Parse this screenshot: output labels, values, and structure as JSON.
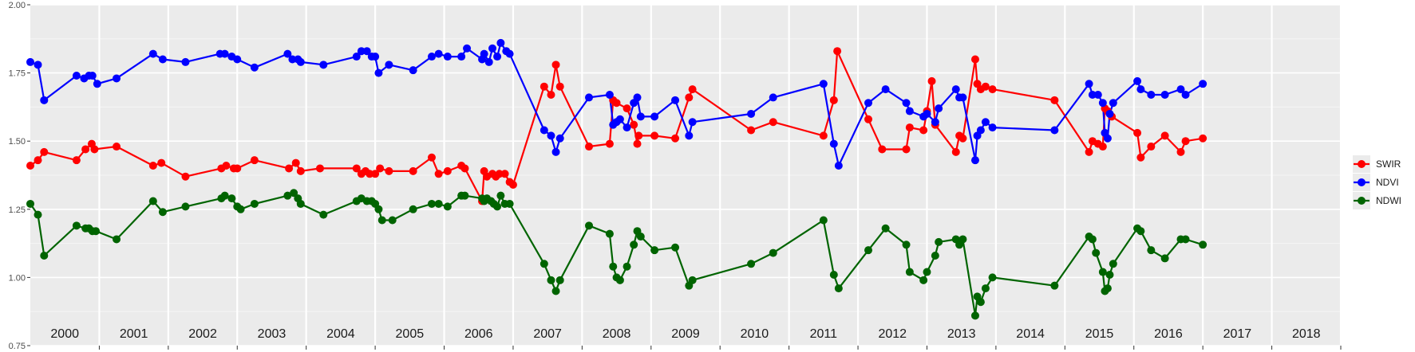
{
  "chart_data": {
    "type": "line",
    "title": "",
    "xlabel": "",
    "ylabel": "",
    "ylim": [
      0.75,
      2.0
    ],
    "xlim": [
      2000.0,
      2019.0
    ],
    "y_ticks": [
      0.75,
      1.0,
      1.25,
      1.5,
      1.75,
      2.0
    ],
    "y_tick_labels": [
      "0.75",
      "1.00",
      "1.25",
      "1.50",
      "1.75",
      "2.00"
    ],
    "year_labels": [
      "2000",
      "2001",
      "2002",
      "2003",
      "2004",
      "2005",
      "2006",
      "2007",
      "2008",
      "2009",
      "2010",
      "2011",
      "2012",
      "2013",
      "2014",
      "2015",
      "2016",
      "2017",
      "2018"
    ],
    "grid": true,
    "legend_position": "right",
    "series": [
      {
        "name": "SWIR",
        "color": "#ff0000",
        "points": [
          [
            2000.0,
            1.41
          ],
          [
            2000.11,
            1.43
          ],
          [
            2000.2,
            1.46
          ],
          [
            2000.67,
            1.43
          ],
          [
            2000.8,
            1.47
          ],
          [
            2000.89,
            1.49
          ],
          [
            2000.93,
            1.47
          ],
          [
            2001.25,
            1.48
          ],
          [
            2001.78,
            1.41
          ],
          [
            2001.9,
            1.42
          ],
          [
            2002.25,
            1.37
          ],
          [
            2002.77,
            1.4
          ],
          [
            2002.84,
            1.41
          ],
          [
            2002.95,
            1.4
          ],
          [
            2003.0,
            1.4
          ],
          [
            2003.25,
            1.43
          ],
          [
            2003.75,
            1.4
          ],
          [
            2003.85,
            1.42
          ],
          [
            2003.92,
            1.39
          ],
          [
            2004.2,
            1.4
          ],
          [
            2004.73,
            1.4
          ],
          [
            2004.8,
            1.38
          ],
          [
            2004.86,
            1.39
          ],
          [
            2004.92,
            1.38
          ],
          [
            2005.0,
            1.38
          ],
          [
            2005.07,
            1.4
          ],
          [
            2005.2,
            1.39
          ],
          [
            2005.55,
            1.39
          ],
          [
            2005.82,
            1.44
          ],
          [
            2005.92,
            1.38
          ],
          [
            2006.05,
            1.39
          ],
          [
            2006.25,
            1.41
          ],
          [
            2006.3,
            1.4
          ],
          [
            2006.55,
            1.28
          ],
          [
            2006.58,
            1.39
          ],
          [
            2006.62,
            1.37
          ],
          [
            2006.7,
            1.38
          ],
          [
            2006.75,
            1.37
          ],
          [
            2006.8,
            1.38
          ],
          [
            2006.88,
            1.38
          ],
          [
            2006.95,
            1.35
          ],
          [
            2007.0,
            1.34
          ],
          [
            2007.45,
            1.7
          ],
          [
            2007.55,
            1.67
          ],
          [
            2007.62,
            1.78
          ],
          [
            2007.68,
            1.7
          ],
          [
            2008.1,
            1.48
          ],
          [
            2008.4,
            1.49
          ],
          [
            2008.45,
            1.65
          ],
          [
            2008.5,
            1.64
          ],
          [
            2008.65,
            1.62
          ],
          [
            2008.75,
            1.56
          ],
          [
            2008.8,
            1.49
          ],
          [
            2008.82,
            1.52
          ],
          [
            2009.05,
            1.52
          ],
          [
            2009.35,
            1.51
          ],
          [
            2009.55,
            1.66
          ],
          [
            2009.6,
            1.69
          ],
          [
            2010.45,
            1.54
          ],
          [
            2010.77,
            1.57
          ],
          [
            2011.5,
            1.52
          ],
          [
            2011.65,
            1.65
          ],
          [
            2011.7,
            1.83
          ],
          [
            2012.15,
            1.58
          ],
          [
            2012.35,
            1.47
          ],
          [
            2012.7,
            1.47
          ],
          [
            2012.75,
            1.55
          ],
          [
            2012.95,
            1.54
          ],
          [
            2013.0,
            1.61
          ],
          [
            2013.07,
            1.72
          ],
          [
            2013.12,
            1.56
          ],
          [
            2013.42,
            1.46
          ],
          [
            2013.47,
            1.52
          ],
          [
            2013.52,
            1.51
          ],
          [
            2013.7,
            1.8
          ],
          [
            2013.73,
            1.71
          ],
          [
            2013.78,
            1.69
          ],
          [
            2013.85,
            1.7
          ],
          [
            2013.95,
            1.69
          ],
          [
            2014.85,
            1.65
          ],
          [
            2015.35,
            1.46
          ],
          [
            2015.4,
            1.5
          ],
          [
            2015.48,
            1.49
          ],
          [
            2015.55,
            1.48
          ],
          [
            2015.58,
            1.62
          ],
          [
            2015.62,
            1.61
          ],
          [
            2015.68,
            1.59
          ],
          [
            2016.05,
            1.53
          ],
          [
            2016.1,
            1.44
          ],
          [
            2016.25,
            1.48
          ],
          [
            2016.45,
            1.52
          ],
          [
            2016.68,
            1.46
          ],
          [
            2016.75,
            1.5
          ],
          [
            2017.0,
            1.51
          ]
        ]
      },
      {
        "name": "NDVI",
        "color": "#0000ff",
        "points": [
          [
            2000.0,
            1.79
          ],
          [
            2000.11,
            1.78
          ],
          [
            2000.2,
            1.65
          ],
          [
            2000.67,
            1.74
          ],
          [
            2000.78,
            1.73
          ],
          [
            2000.85,
            1.74
          ],
          [
            2000.9,
            1.74
          ],
          [
            2000.97,
            1.71
          ],
          [
            2001.25,
            1.73
          ],
          [
            2001.78,
            1.82
          ],
          [
            2001.92,
            1.8
          ],
          [
            2002.25,
            1.79
          ],
          [
            2002.75,
            1.82
          ],
          [
            2002.82,
            1.82
          ],
          [
            2002.92,
            1.81
          ],
          [
            2003.0,
            1.8
          ],
          [
            2003.25,
            1.77
          ],
          [
            2003.73,
            1.82
          ],
          [
            2003.8,
            1.8
          ],
          [
            2003.88,
            1.8
          ],
          [
            2003.92,
            1.79
          ],
          [
            2004.25,
            1.78
          ],
          [
            2004.73,
            1.81
          ],
          [
            2004.8,
            1.83
          ],
          [
            2004.88,
            1.83
          ],
          [
            2004.95,
            1.81
          ],
          [
            2005.0,
            1.81
          ],
          [
            2005.05,
            1.75
          ],
          [
            2005.2,
            1.78
          ],
          [
            2005.55,
            1.76
          ],
          [
            2005.82,
            1.81
          ],
          [
            2005.92,
            1.82
          ],
          [
            2006.05,
            1.81
          ],
          [
            2006.25,
            1.81
          ],
          [
            2006.33,
            1.84
          ],
          [
            2006.55,
            1.8
          ],
          [
            2006.58,
            1.82
          ],
          [
            2006.65,
            1.79
          ],
          [
            2006.7,
            1.84
          ],
          [
            2006.77,
            1.81
          ],
          [
            2006.82,
            1.86
          ],
          [
            2006.9,
            1.83
          ],
          [
            2006.95,
            1.82
          ],
          [
            2007.45,
            1.54
          ],
          [
            2007.55,
            1.52
          ],
          [
            2007.62,
            1.46
          ],
          [
            2007.68,
            1.51
          ],
          [
            2008.1,
            1.66
          ],
          [
            2008.4,
            1.67
          ],
          [
            2008.45,
            1.56
          ],
          [
            2008.5,
            1.57
          ],
          [
            2008.55,
            1.58
          ],
          [
            2008.65,
            1.55
          ],
          [
            2008.75,
            1.64
          ],
          [
            2008.8,
            1.66
          ],
          [
            2008.85,
            1.59
          ],
          [
            2009.05,
            1.59
          ],
          [
            2009.35,
            1.65
          ],
          [
            2009.55,
            1.52
          ],
          [
            2009.6,
            1.57
          ],
          [
            2010.45,
            1.6
          ],
          [
            2010.77,
            1.66
          ],
          [
            2011.5,
            1.71
          ],
          [
            2011.65,
            1.49
          ],
          [
            2011.72,
            1.41
          ],
          [
            2012.15,
            1.64
          ],
          [
            2012.4,
            1.69
          ],
          [
            2012.7,
            1.64
          ],
          [
            2012.75,
            1.61
          ],
          [
            2012.95,
            1.59
          ],
          [
            2013.0,
            1.6
          ],
          [
            2013.12,
            1.57
          ],
          [
            2013.17,
            1.62
          ],
          [
            2013.42,
            1.69
          ],
          [
            2013.47,
            1.66
          ],
          [
            2013.52,
            1.66
          ],
          [
            2013.7,
            1.43
          ],
          [
            2013.73,
            1.52
          ],
          [
            2013.78,
            1.54
          ],
          [
            2013.85,
            1.57
          ],
          [
            2013.95,
            1.55
          ],
          [
            2014.85,
            1.54
          ],
          [
            2015.35,
            1.71
          ],
          [
            2015.4,
            1.67
          ],
          [
            2015.48,
            1.67
          ],
          [
            2015.55,
            1.64
          ],
          [
            2015.58,
            1.53
          ],
          [
            2015.62,
            1.51
          ],
          [
            2015.65,
            1.6
          ],
          [
            2015.7,
            1.64
          ],
          [
            2016.05,
            1.72
          ],
          [
            2016.1,
            1.69
          ],
          [
            2016.25,
            1.67
          ],
          [
            2016.45,
            1.67
          ],
          [
            2016.68,
            1.69
          ],
          [
            2016.75,
            1.67
          ],
          [
            2017.0,
            1.71
          ]
        ]
      },
      {
        "name": "NDWI",
        "color": "#006400",
        "points": [
          [
            2000.0,
            1.27
          ],
          [
            2000.11,
            1.23
          ],
          [
            2000.2,
            1.08
          ],
          [
            2000.67,
            1.19
          ],
          [
            2000.8,
            1.18
          ],
          [
            2000.85,
            1.18
          ],
          [
            2000.9,
            1.17
          ],
          [
            2000.95,
            1.17
          ],
          [
            2001.25,
            1.14
          ],
          [
            2001.78,
            1.28
          ],
          [
            2001.92,
            1.24
          ],
          [
            2002.25,
            1.26
          ],
          [
            2002.77,
            1.29
          ],
          [
            2002.82,
            1.3
          ],
          [
            2002.92,
            1.29
          ],
          [
            2003.0,
            1.26
          ],
          [
            2003.05,
            1.25
          ],
          [
            2003.25,
            1.27
          ],
          [
            2003.73,
            1.3
          ],
          [
            2003.82,
            1.31
          ],
          [
            2003.88,
            1.29
          ],
          [
            2003.92,
            1.27
          ],
          [
            2004.25,
            1.23
          ],
          [
            2004.73,
            1.28
          ],
          [
            2004.8,
            1.29
          ],
          [
            2004.88,
            1.28
          ],
          [
            2004.95,
            1.28
          ],
          [
            2005.0,
            1.27
          ],
          [
            2005.05,
            1.25
          ],
          [
            2005.1,
            1.21
          ],
          [
            2005.25,
            1.21
          ],
          [
            2005.55,
            1.25
          ],
          [
            2005.82,
            1.27
          ],
          [
            2005.92,
            1.27
          ],
          [
            2006.05,
            1.26
          ],
          [
            2006.25,
            1.3
          ],
          [
            2006.3,
            1.3
          ],
          [
            2006.55,
            1.29
          ],
          [
            2006.58,
            1.28
          ],
          [
            2006.62,
            1.29
          ],
          [
            2006.68,
            1.28
          ],
          [
            2006.72,
            1.27
          ],
          [
            2006.77,
            1.26
          ],
          [
            2006.82,
            1.3
          ],
          [
            2006.88,
            1.27
          ],
          [
            2006.95,
            1.27
          ],
          [
            2007.45,
            1.05
          ],
          [
            2007.55,
            0.99
          ],
          [
            2007.62,
            0.95
          ],
          [
            2007.68,
            0.99
          ],
          [
            2008.1,
            1.19
          ],
          [
            2008.4,
            1.16
          ],
          [
            2008.45,
            1.04
          ],
          [
            2008.5,
            1.0
          ],
          [
            2008.55,
            0.99
          ],
          [
            2008.65,
            1.04
          ],
          [
            2008.75,
            1.12
          ],
          [
            2008.8,
            1.17
          ],
          [
            2008.85,
            1.15
          ],
          [
            2009.05,
            1.1
          ],
          [
            2009.35,
            1.11
          ],
          [
            2009.55,
            0.97
          ],
          [
            2009.6,
            0.99
          ],
          [
            2010.45,
            1.05
          ],
          [
            2010.77,
            1.09
          ],
          [
            2011.5,
            1.21
          ],
          [
            2011.65,
            1.01
          ],
          [
            2011.72,
            0.96
          ],
          [
            2012.15,
            1.1
          ],
          [
            2012.4,
            1.18
          ],
          [
            2012.7,
            1.12
          ],
          [
            2012.75,
            1.02
          ],
          [
            2012.95,
            0.99
          ],
          [
            2013.0,
            1.02
          ],
          [
            2013.12,
            1.08
          ],
          [
            2013.17,
            1.13
          ],
          [
            2013.42,
            1.14
          ],
          [
            2013.47,
            1.12
          ],
          [
            2013.52,
            1.14
          ],
          [
            2013.7,
            0.86
          ],
          [
            2013.73,
            0.93
          ],
          [
            2013.78,
            0.91
          ],
          [
            2013.85,
            0.96
          ],
          [
            2013.95,
            1.0
          ],
          [
            2014.85,
            0.97
          ],
          [
            2015.35,
            1.15
          ],
          [
            2015.4,
            1.14
          ],
          [
            2015.45,
            1.09
          ],
          [
            2015.55,
            1.02
          ],
          [
            2015.58,
            0.95
          ],
          [
            2015.62,
            0.96
          ],
          [
            2015.65,
            1.01
          ],
          [
            2015.7,
            1.05
          ],
          [
            2016.05,
            1.18
          ],
          [
            2016.1,
            1.17
          ],
          [
            2016.25,
            1.1
          ],
          [
            2016.45,
            1.07
          ],
          [
            2016.68,
            1.14
          ],
          [
            2016.75,
            1.14
          ],
          [
            2017.0,
            1.12
          ]
        ]
      }
    ]
  }
}
